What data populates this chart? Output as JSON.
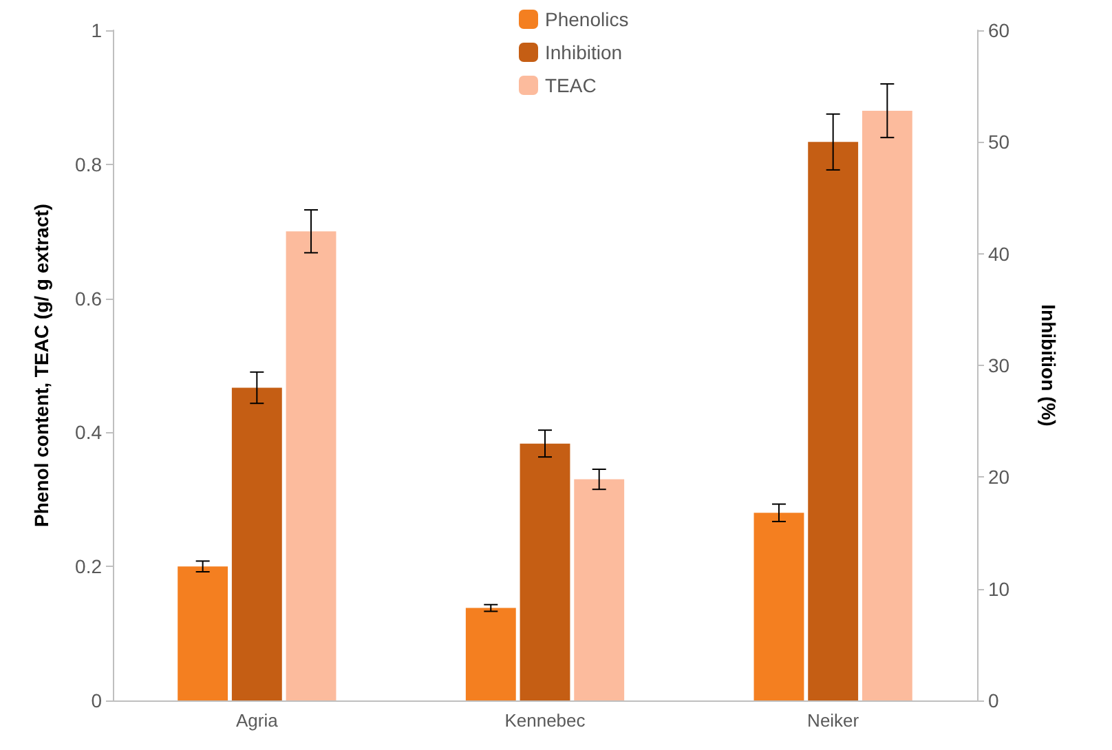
{
  "chart_data": {
    "type": "bar",
    "ylabel": "Phenol content, TEAC (g/ g extract)",
    "y2label": "Inhibition (%)",
    "categories": [
      "Agria",
      "Kennebec",
      "Neiker"
    ],
    "series": [
      {
        "name": "Phenolics",
        "color": "#f47f20",
        "values": [
          0.2,
          0.138,
          0.28
        ],
        "errors": [
          0.008,
          0.005,
          0.013
        ]
      },
      {
        "name": "Inhibition",
        "color": "#c55e14",
        "axis": "y2",
        "values": [
          28,
          23,
          50
        ],
        "errors": [
          1.4,
          1.2,
          2.5
        ]
      },
      {
        "name": "TEAC",
        "color": "#fcbb9d",
        "values": [
          0.7,
          0.33,
          0.88
        ],
        "errors": [
          0.032,
          0.015,
          0.04
        ]
      }
    ],
    "ylim": [
      0,
      1
    ],
    "yticks": [
      0,
      0.2,
      0.4,
      0.6,
      0.8,
      1
    ],
    "y2lim": [
      0,
      60
    ],
    "y2ticks": [
      0,
      10,
      20,
      30,
      40,
      50,
      60
    ],
    "grid": false,
    "legend": "top"
  }
}
